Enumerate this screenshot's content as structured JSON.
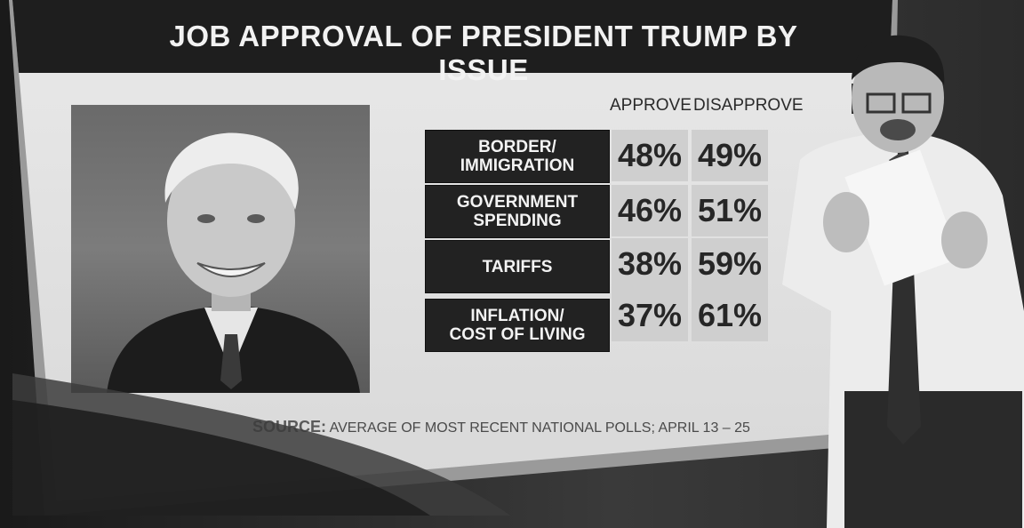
{
  "title": "JOB APPROVAL OF PRESIDENT TRUMP BY ISSUE",
  "chart_data": {
    "type": "table",
    "columns": [
      "APPROVE",
      "DISAPPROVE"
    ],
    "rows": [
      {
        "label": "BORDER/\nIMMIGRATION",
        "approve": "48%",
        "disapprove": "49%"
      },
      {
        "label": "GOVERNMENT\nSPENDING",
        "approve": "46%",
        "disapprove": "51%"
      },
      {
        "label": "TARIFFS",
        "approve": "38%",
        "disapprove": "59%"
      },
      {
        "label": "INFLATION/\nCOST OF LIVING",
        "approve": "37%",
        "disapprove": "61%"
      }
    ]
  },
  "source": {
    "label": "SOURCE:",
    "text": "AVERAGE OF MOST RECENT NATIONAL POLLS; APRIL 13 – 25"
  },
  "colors": {
    "label_bg": "#222222",
    "cell_bg": "#cfcfcf",
    "title_bg": "#1e1e1e"
  }
}
